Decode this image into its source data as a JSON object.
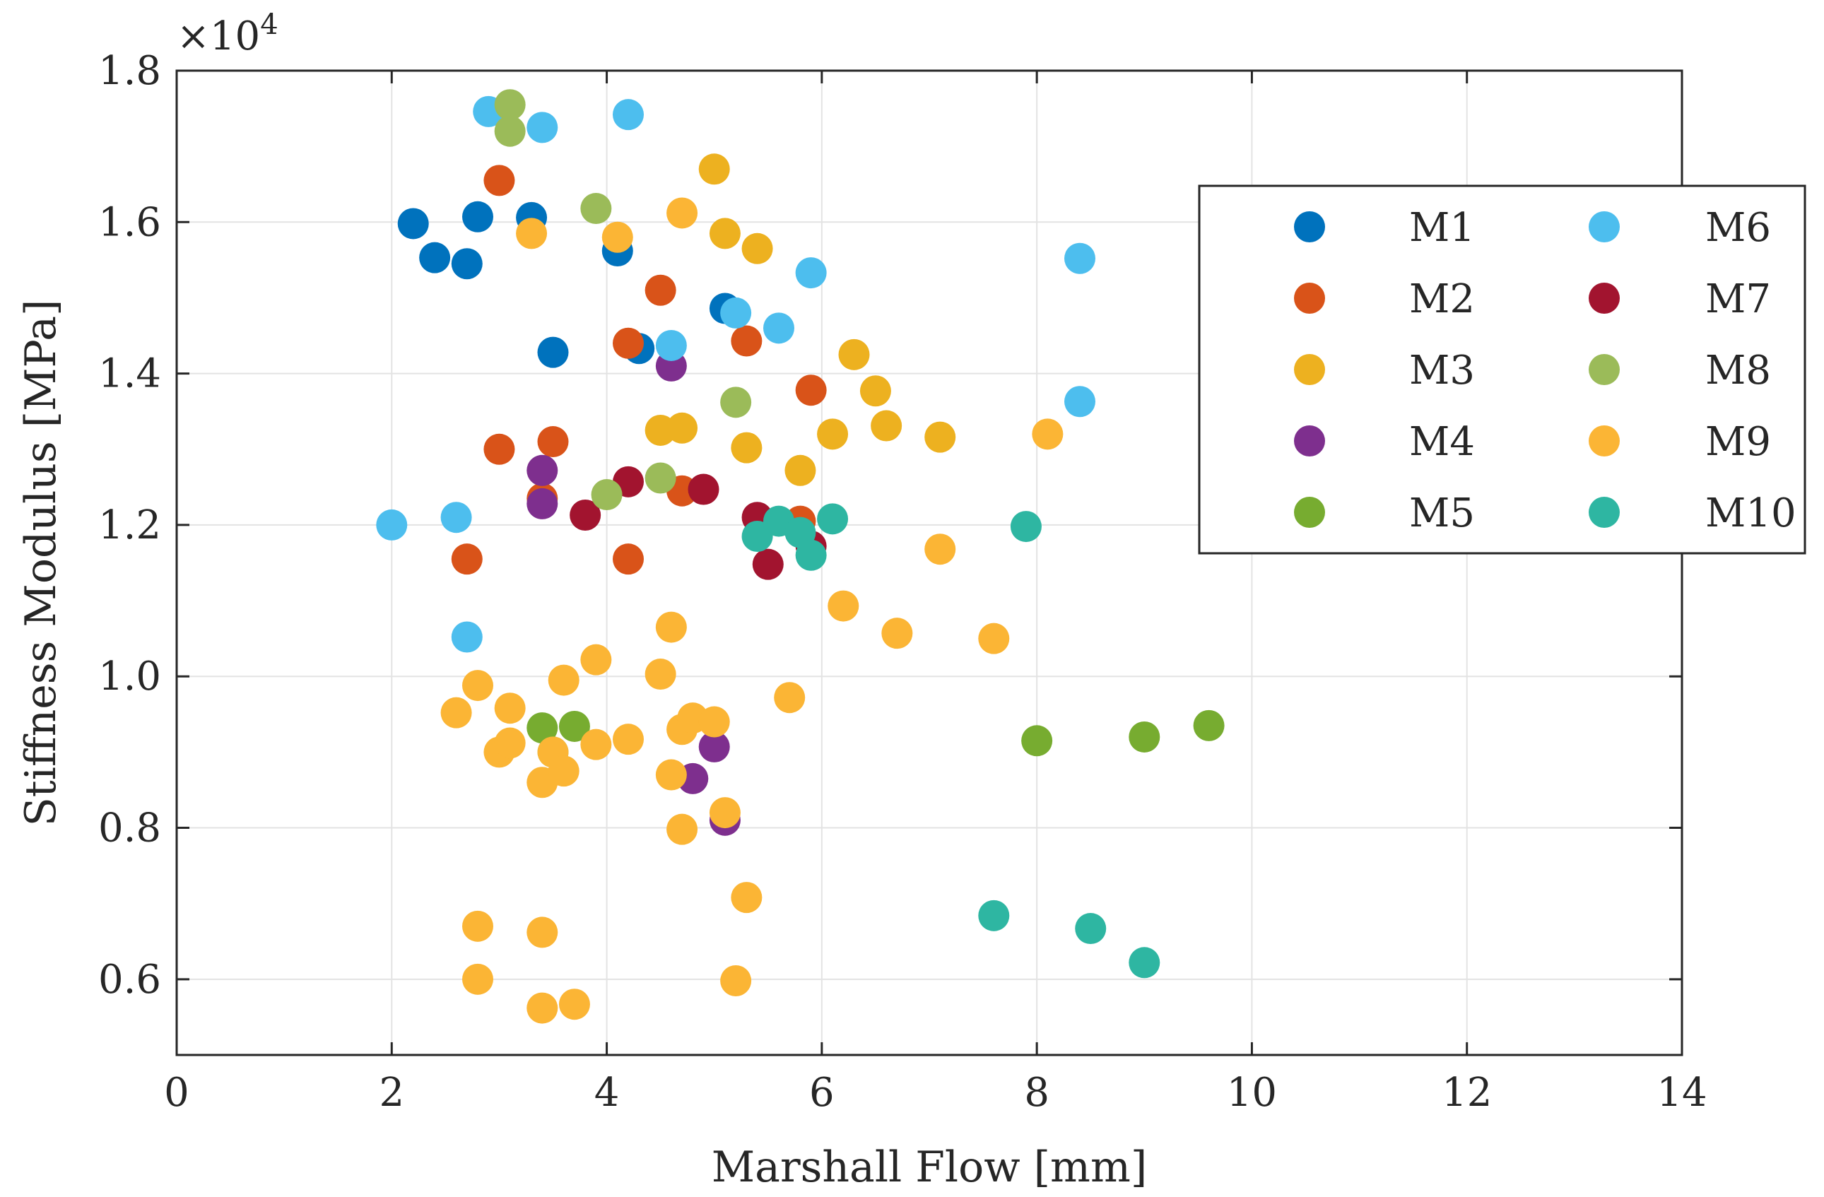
{
  "chart_data": {
    "type": "scatter",
    "title": "",
    "xlabel": "Marshall Flow [mm]",
    "ylabel": "Stiffness Modulus [MPa]",
    "y_exponent_label": "×10",
    "y_exponent_power": "4",
    "xlim": [
      0,
      14
    ],
    "ylim": [
      0.5,
      1.8
    ],
    "y_scale": 10000,
    "x_ticks": [
      0,
      2,
      4,
      6,
      8,
      10,
      12,
      14
    ],
    "x_tick_labels": [
      "0",
      "2",
      "4",
      "6",
      "8",
      "10",
      "12",
      "14"
    ],
    "y_ticks": [
      0.6,
      0.8,
      1.0,
      1.2,
      1.4,
      1.6,
      1.8
    ],
    "y_tick_labels": [
      "0.6",
      "0.8",
      "1.0",
      "1.2",
      "1.4",
      "1.6",
      "1.8"
    ],
    "grid": true,
    "legend_position": "top-right",
    "series": [
      {
        "name": "M1",
        "color": "#0072BD",
        "points": [
          [
            2.2,
            1.598
          ],
          [
            2.4,
            1.553
          ],
          [
            2.7,
            1.545
          ],
          [
            2.8,
            1.607
          ],
          [
            3.3,
            1.606
          ],
          [
            3.5,
            1.428
          ],
          [
            4.1,
            1.562
          ],
          [
            4.3,
            1.433
          ],
          [
            5.1,
            1.486
          ]
        ]
      },
      {
        "name": "M2",
        "color": "#D95319",
        "points": [
          [
            2.7,
            1.155
          ],
          [
            3.0,
            1.3
          ],
          [
            3.0,
            1.655
          ],
          [
            3.4,
            1.235
          ],
          [
            3.5,
            1.31
          ],
          [
            4.2,
            1.155
          ],
          [
            4.2,
            1.44
          ],
          [
            4.5,
            1.51
          ],
          [
            4.7,
            1.245
          ],
          [
            5.3,
            1.443
          ],
          [
            5.8,
            1.205
          ],
          [
            5.9,
            1.378
          ]
        ]
      },
      {
        "name": "M3",
        "color": "#EDB120",
        "points": [
          [
            4.5,
            1.325
          ],
          [
            4.7,
            1.328
          ],
          [
            5.0,
            1.67
          ],
          [
            5.1,
            1.585
          ],
          [
            5.3,
            1.302
          ],
          [
            5.4,
            1.565
          ],
          [
            5.8,
            1.272
          ],
          [
            6.1,
            1.32
          ],
          [
            6.3,
            1.425
          ],
          [
            6.5,
            1.377
          ],
          [
            6.6,
            1.331
          ],
          [
            7.1,
            1.316
          ]
        ]
      },
      {
        "name": "M4",
        "color": "#7E2F8E",
        "points": [
          [
            3.4,
            1.272
          ],
          [
            3.4,
            1.228
          ],
          [
            4.6,
            1.41
          ],
          [
            4.8,
            0.865
          ],
          [
            5.0,
            0.907
          ],
          [
            5.1,
            0.81
          ]
        ]
      },
      {
        "name": "M5",
        "color": "#77AC30",
        "points": [
          [
            3.4,
            0.932
          ],
          [
            3.7,
            0.934
          ],
          [
            3.5,
            0.9
          ],
          [
            8.0,
            0.915
          ],
          [
            9.0,
            0.92
          ],
          [
            9.6,
            0.935
          ]
        ]
      },
      {
        "name": "M6",
        "color": "#4DBEEE",
        "points": [
          [
            2.0,
            1.2
          ],
          [
            2.6,
            1.21
          ],
          [
            2.7,
            1.052
          ],
          [
            2.9,
            1.746
          ],
          [
            3.4,
            1.725
          ],
          [
            4.2,
            1.742
          ],
          [
            4.6,
            1.437
          ],
          [
            5.2,
            1.48
          ],
          [
            5.6,
            1.46
          ],
          [
            5.9,
            1.533
          ],
          [
            8.4,
            1.552
          ],
          [
            8.4,
            1.363
          ]
        ]
      },
      {
        "name": "M7",
        "color": "#A2142F",
        "points": [
          [
            3.8,
            1.213
          ],
          [
            4.2,
            1.257
          ],
          [
            4.9,
            1.247
          ],
          [
            5.4,
            1.21
          ],
          [
            5.5,
            1.148
          ],
          [
            5.9,
            1.172
          ]
        ]
      },
      {
        "name": "M8",
        "color": "#9BBB59",
        "points": [
          [
            3.1,
            1.755
          ],
          [
            3.1,
            1.72
          ],
          [
            3.9,
            1.618
          ],
          [
            4.0,
            1.24
          ],
          [
            4.5,
            1.262
          ],
          [
            5.2,
            1.362
          ]
        ]
      },
      {
        "name": "M9",
        "color": "#FBB535",
        "points": [
          [
            2.6,
            0.952
          ],
          [
            2.8,
            0.988
          ],
          [
            3.0,
            0.9
          ],
          [
            3.1,
            0.958
          ],
          [
            3.1,
            0.912
          ],
          [
            3.3,
            1.585
          ],
          [
            3.4,
            0.86
          ],
          [
            3.5,
            0.9
          ],
          [
            3.6,
            0.995
          ],
          [
            3.6,
            0.875
          ],
          [
            3.9,
            1.022
          ],
          [
            3.9,
            0.91
          ],
          [
            4.1,
            1.58
          ],
          [
            4.2,
            0.917
          ],
          [
            4.5,
            1.003
          ],
          [
            4.6,
            1.065
          ],
          [
            4.6,
            0.87
          ],
          [
            4.7,
            1.612
          ],
          [
            4.7,
            0.93
          ],
          [
            4.8,
            0.945
          ],
          [
            5.0,
            0.94
          ],
          [
            5.1,
            0.82
          ],
          [
            4.7,
            0.798
          ],
          [
            5.3,
            0.708
          ],
          [
            5.7,
            0.972
          ],
          [
            6.2,
            1.093
          ],
          [
            6.7,
            1.057
          ],
          [
            7.1,
            1.168
          ],
          [
            7.6,
            1.05
          ],
          [
            8.1,
            1.32
          ],
          [
            2.8,
            0.67
          ],
          [
            2.8,
            0.6
          ],
          [
            3.4,
            0.662
          ],
          [
            3.4,
            0.562
          ],
          [
            3.7,
            0.567
          ],
          [
            5.2,
            0.598
          ]
        ]
      },
      {
        "name": "M10",
        "color": "#2EB6A2",
        "points": [
          [
            5.4,
            1.185
          ],
          [
            5.6,
            1.205
          ],
          [
            5.8,
            1.19
          ],
          [
            5.9,
            1.16
          ],
          [
            6.1,
            1.208
          ],
          [
            7.9,
            1.198
          ],
          [
            7.6,
            0.684
          ],
          [
            8.5,
            0.667
          ],
          [
            9.0,
            0.622
          ]
        ]
      }
    ]
  }
}
